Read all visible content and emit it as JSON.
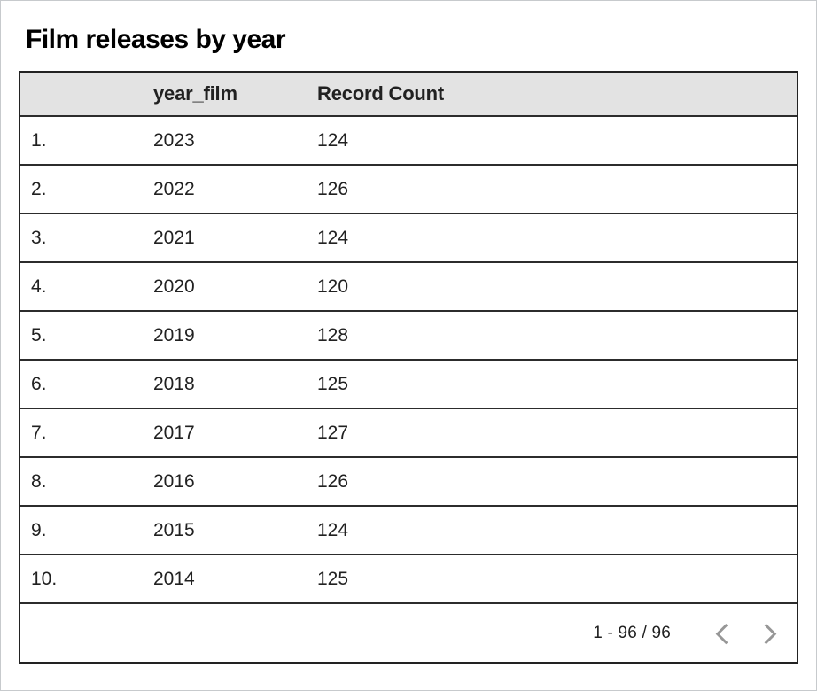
{
  "title": "Film releases by year",
  "table": {
    "columns": [
      "",
      "year_film",
      "Record Count"
    ],
    "rows": [
      {
        "num": "1.",
        "year_film": "2023",
        "record_count": "124"
      },
      {
        "num": "2.",
        "year_film": "2022",
        "record_count": "126"
      },
      {
        "num": "3.",
        "year_film": "2021",
        "record_count": "124"
      },
      {
        "num": "4.",
        "year_film": "2020",
        "record_count": "120"
      },
      {
        "num": "5.",
        "year_film": "2019",
        "record_count": "128"
      },
      {
        "num": "6.",
        "year_film": "2018",
        "record_count": "125"
      },
      {
        "num": "7.",
        "year_film": "2017",
        "record_count": "127"
      },
      {
        "num": "8.",
        "year_film": "2016",
        "record_count": "126"
      },
      {
        "num": "9.",
        "year_film": "2015",
        "record_count": "124"
      },
      {
        "num": "10.",
        "year_film": "2014",
        "record_count": "125"
      }
    ]
  },
  "pagination": {
    "range_label": "1 - 96 / 96",
    "prev_icon": "chevron-left",
    "next_icon": "chevron-right"
  },
  "chart_data": {
    "type": "table",
    "title": "Film releases by year",
    "categories": [
      2023,
      2022,
      2021,
      2020,
      2019,
      2018,
      2017,
      2016,
      2015,
      2014
    ],
    "series": [
      {
        "name": "Record Count",
        "values": [
          124,
          126,
          124,
          120,
          128,
          125,
          127,
          126,
          124,
          125
        ]
      }
    ],
    "total_rows": 96,
    "visible_range": "1 - 96"
  },
  "colors": {
    "header_bg": "#e3e3e3",
    "table_border": "#222222",
    "row_border": "#2c2c2c",
    "text": "#212121",
    "title_text": "#000000",
    "pagination_text": "#1f1f1f",
    "chevron": "#979797",
    "canvas_border": "#c7cacd"
  }
}
